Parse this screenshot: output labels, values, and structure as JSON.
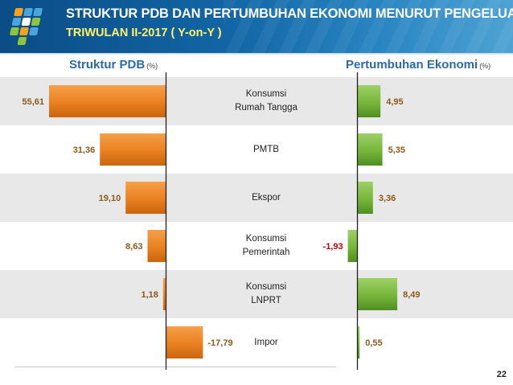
{
  "header": {
    "title": "STRUKTUR PDB DAN PERTUMBUHAN EKONOMI MENURUT PENGELUARAN",
    "subtitle": "TRIWULAN II-2017 ( Y-on-Y )",
    "logo": "bps-logo"
  },
  "sections": {
    "left_title": "Struktur PDB",
    "left_unit": "(%)",
    "right_title": "Pertumbuhan Ekonomi",
    "right_unit": "(%)"
  },
  "colors": {
    "orange": "#e9801f",
    "green": "#76b63a",
    "negative_label": "#c00000",
    "value_label": "#8a5a1a"
  },
  "chart_data": [
    {
      "type": "bar",
      "orientation": "horizontal",
      "title": "Struktur PDB",
      "unit": "(%)",
      "categories": [
        [
          "Konsumsi",
          "Rumah Tangga"
        ],
        [
          "PMTB"
        ],
        [
          "Ekspor"
        ],
        [
          "Konsumsi",
          "Pemerintah"
        ],
        [
          "Konsumsi",
          "LNPRT"
        ],
        [
          "Impor"
        ]
      ],
      "values": [
        55.61,
        31.36,
        19.1,
        8.63,
        1.18,
        -17.79
      ],
      "labels": [
        "55,61",
        "31,36",
        "19,10",
        "8,63",
        "1,18",
        "-17,79"
      ]
    },
    {
      "type": "bar",
      "orientation": "horizontal",
      "title": "Pertumbuhan Ekonomi",
      "unit": "(%)",
      "categories": [
        [
          "Konsumsi",
          "Rumah Tangga"
        ],
        [
          "PMTB"
        ],
        [
          "Ekspor"
        ],
        [
          "Konsumsi",
          "Pemerintah"
        ],
        [
          "Konsumsi",
          "LNPRT"
        ],
        [
          "Impor"
        ]
      ],
      "values": [
        4.95,
        5.35,
        3.36,
        -1.93,
        8.49,
        0.55
      ],
      "labels": [
        "4,95",
        "5,35",
        "3,36",
        "-1,93",
        "8,49",
        "0,55"
      ]
    }
  ],
  "page_number": "22"
}
